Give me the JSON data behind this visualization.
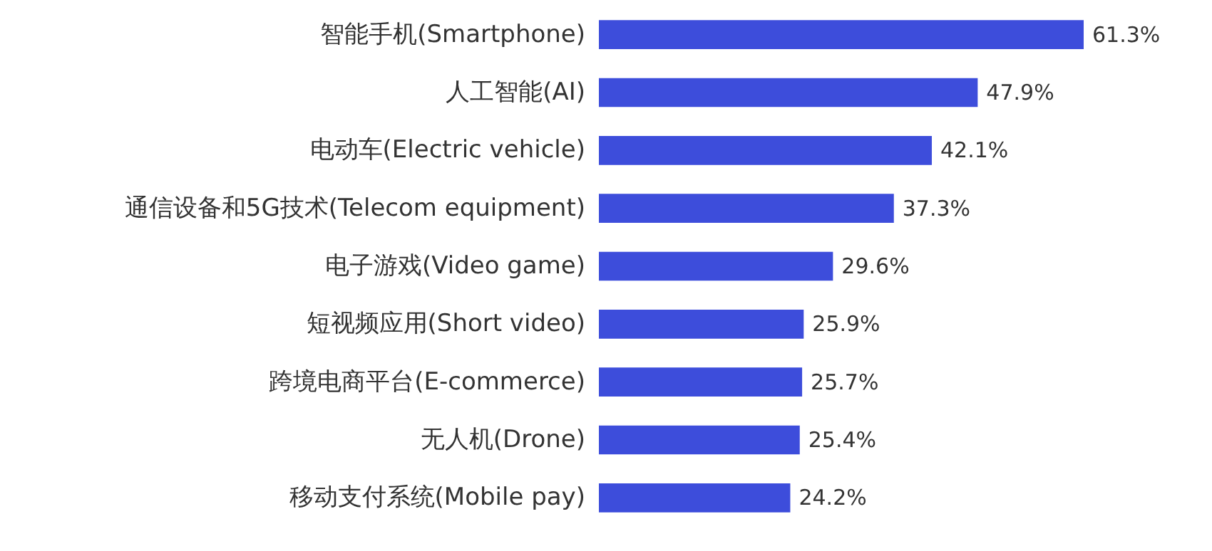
{
  "chart_data": {
    "type": "bar",
    "orientation": "horizontal",
    "tick_labels": "y",
    "categories": [
      "智能手机(Smartphone)",
      "人工智能(AI)",
      "电动车(Electric vehicle)",
      "通信设备和5G技术(Telecom equipment)",
      "电子游戏(Video game)",
      "短视频应用(Short video)",
      "跨境电商平台(E-commerce)",
      "无人机(Drone)",
      "移动支付系统(Mobile pay)"
    ],
    "values": [
      61.3,
      47.9,
      42.1,
      37.3,
      29.6,
      25.9,
      25.7,
      25.4,
      24.2
    ],
    "value_labels": [
      "61.3%",
      "47.9%",
      "42.1%",
      "37.3%",
      "29.6%",
      "25.9%",
      "25.7%",
      "25.4%",
      "24.2%"
    ],
    "color": "#3d4ddb"
  }
}
